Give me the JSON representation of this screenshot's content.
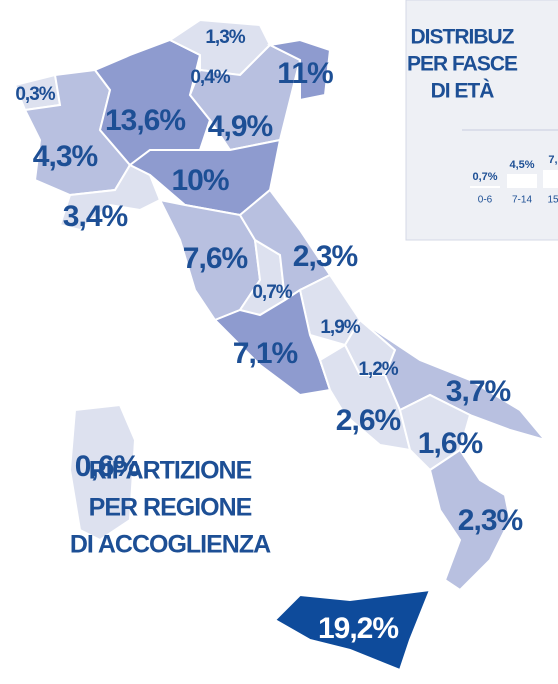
{
  "map": {
    "regions": [
      {
        "label": "0,3%"
      },
      {
        "label": "4,3%"
      },
      {
        "label": "3,4%"
      },
      {
        "label": "13,6%"
      },
      {
        "label": "1,3%"
      },
      {
        "label": "0,4%"
      },
      {
        "label": "4,9%"
      },
      {
        "label": "11%"
      },
      {
        "label": "10%"
      },
      {
        "label": "7,6%"
      },
      {
        "label": "0,7%"
      },
      {
        "label": "2,3%"
      },
      {
        "label": "1,9%"
      },
      {
        "label": "7,1%"
      },
      {
        "label": "1,2%"
      },
      {
        "label": "2,6%"
      },
      {
        "label": "3,7%"
      },
      {
        "label": "1,6%"
      },
      {
        "label": "2,3%"
      },
      {
        "label": "19,2%"
      },
      {
        "label": "0,6%"
      }
    ],
    "title": [
      "RIPARTIZIONE",
      "PER REGIONE",
      "DI ACCOGLIENZA"
    ]
  },
  "inset": {
    "title": [
      "DISTRIBUZ",
      "PER FASCE",
      "DI ETÀ"
    ],
    "bars": [
      {
        "value_label": "0,7%",
        "age": "0-6"
      },
      {
        "value_label": "4,5%",
        "age": "7-14"
      },
      {
        "value_label": "7,",
        "age": "15"
      }
    ]
  }
}
